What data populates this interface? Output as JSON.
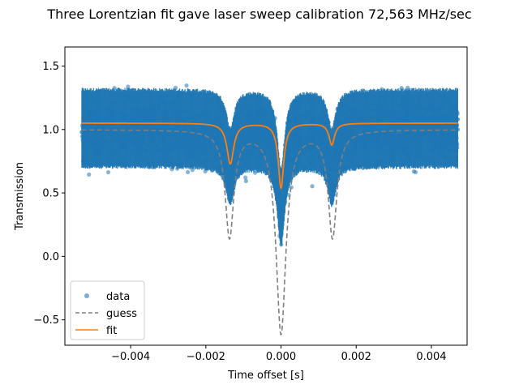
{
  "chart_data": {
    "type": "scatter",
    "title": "Three Lorentzian fit gave laser sweep calibration 72,563 MHz/sec",
    "xlabel": "Time offset [s]",
    "ylabel": "Transmission",
    "xlim": [
      -0.00575,
      0.00495
    ],
    "ylim": [
      -0.7,
      1.65
    ],
    "x_ticks": [
      -0.004,
      -0.002,
      0.0,
      0.002,
      0.004
    ],
    "x_tick_labels": [
      "−0.004",
      "−0.002",
      "0.000",
      "0.002",
      "0.004"
    ],
    "y_ticks": [
      -0.5,
      0.0,
      0.5,
      1.0,
      1.5
    ],
    "y_tick_labels": [
      "−0.5",
      "0.0",
      "0.5",
      "1.0",
      "1.5"
    ],
    "grid": false,
    "legend_position": "lower-left",
    "series": [
      {
        "name": "data",
        "kind": "scatter",
        "color": "#1f77b4",
        "x_range": [
          -0.0053,
          0.0047
        ],
        "baseline": 1.0,
        "noise_band": [
          0.6,
          1.45
        ],
        "dips": [
          {
            "center": -0.00135,
            "depth": 0.3,
            "width": 0.00013
          },
          {
            "center": 0.0,
            "depth": 0.62,
            "width": 0.00012
          },
          {
            "center": 0.00135,
            "depth": 0.3,
            "width": 0.00013
          }
        ],
        "points": [
          [
            -0.0053,
            0.98
          ],
          [
            -0.005,
            1.08
          ],
          [
            -0.0045,
            0.92
          ],
          [
            -0.004,
            1.12
          ],
          [
            -0.0035,
            0.95
          ],
          [
            -0.003,
            1.05
          ],
          [
            -0.0025,
            1.02
          ],
          [
            -0.002,
            0.9
          ],
          [
            -0.0017,
            0.82
          ],
          [
            -0.0014,
            0.72
          ],
          [
            -0.0013,
            0.68
          ],
          [
            -0.001,
            0.95
          ],
          [
            -0.0007,
            0.98
          ],
          [
            -0.0004,
            0.85
          ],
          [
            -0.0001,
            0.45
          ],
          [
            0.0,
            0.3
          ],
          [
            0.0001,
            0.42
          ],
          [
            0.0004,
            0.9
          ],
          [
            0.0007,
            1.0
          ],
          [
            0.001,
            0.95
          ],
          [
            0.0013,
            0.7
          ],
          [
            0.0014,
            0.73
          ],
          [
            0.0017,
            0.85
          ],
          [
            0.002,
            0.98
          ],
          [
            0.0025,
            1.04
          ],
          [
            0.003,
            0.97
          ],
          [
            0.0035,
            1.1
          ],
          [
            0.004,
            0.93
          ],
          [
            0.0045,
            1.06
          ],
          [
            0.0047,
            1.0
          ]
        ]
      },
      {
        "name": "guess",
        "kind": "line",
        "color": "#7f7f7f",
        "dash": true,
        "baseline": 1.0,
        "dips": [
          {
            "center": -0.00137,
            "depth": 0.84,
            "width": 0.00014
          },
          {
            "center": 0.0,
            "depth": 1.6,
            "width": 0.00016
          },
          {
            "center": 0.00137,
            "depth": 0.84,
            "width": 0.00014
          }
        ]
      },
      {
        "name": "fit",
        "kind": "line",
        "color": "#ff7f0e",
        "dash": false,
        "baseline": 1.05,
        "dips": [
          {
            "center": -0.00135,
            "depth": 0.32,
            "width": 0.00011
          },
          {
            "center": 0.0,
            "depth": 0.51,
            "width": 9e-05
          },
          {
            "center": 0.00135,
            "depth": 0.17,
            "width": 9e-05
          }
        ]
      }
    ]
  }
}
